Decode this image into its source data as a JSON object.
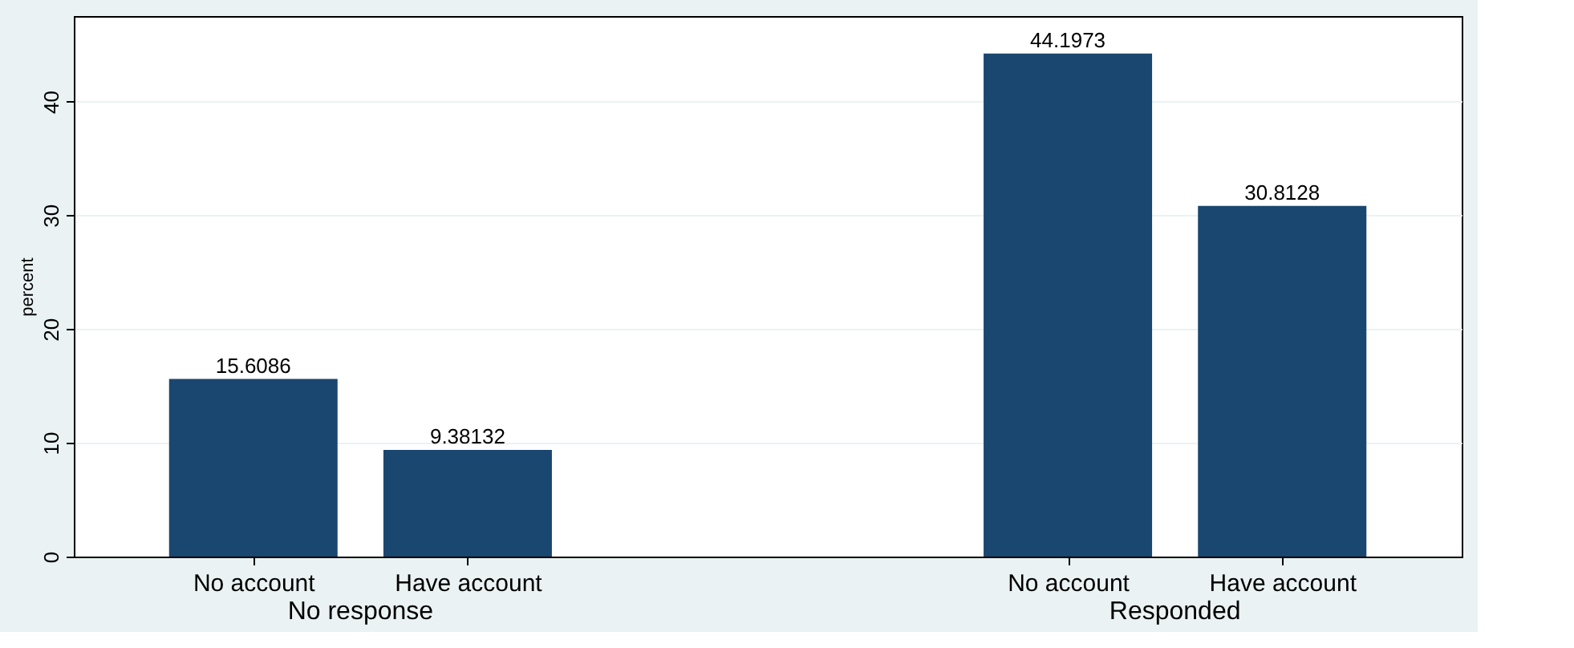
{
  "chart_data": {
    "type": "bar",
    "ylabel": "percent",
    "categories": [
      "No account",
      "Have account",
      "No account",
      "Have account"
    ],
    "values": [
      15.6086,
      9.38132,
      44.1973,
      30.8128
    ],
    "color": "#1a476f",
    "annotations": [
      "No response",
      "Responded"
    ],
    "ylim": [
      0,
      47.5
    ],
    "yticks": [
      0,
      10,
      20,
      30,
      40
    ],
    "grid": "y",
    "data_labels": true
  }
}
